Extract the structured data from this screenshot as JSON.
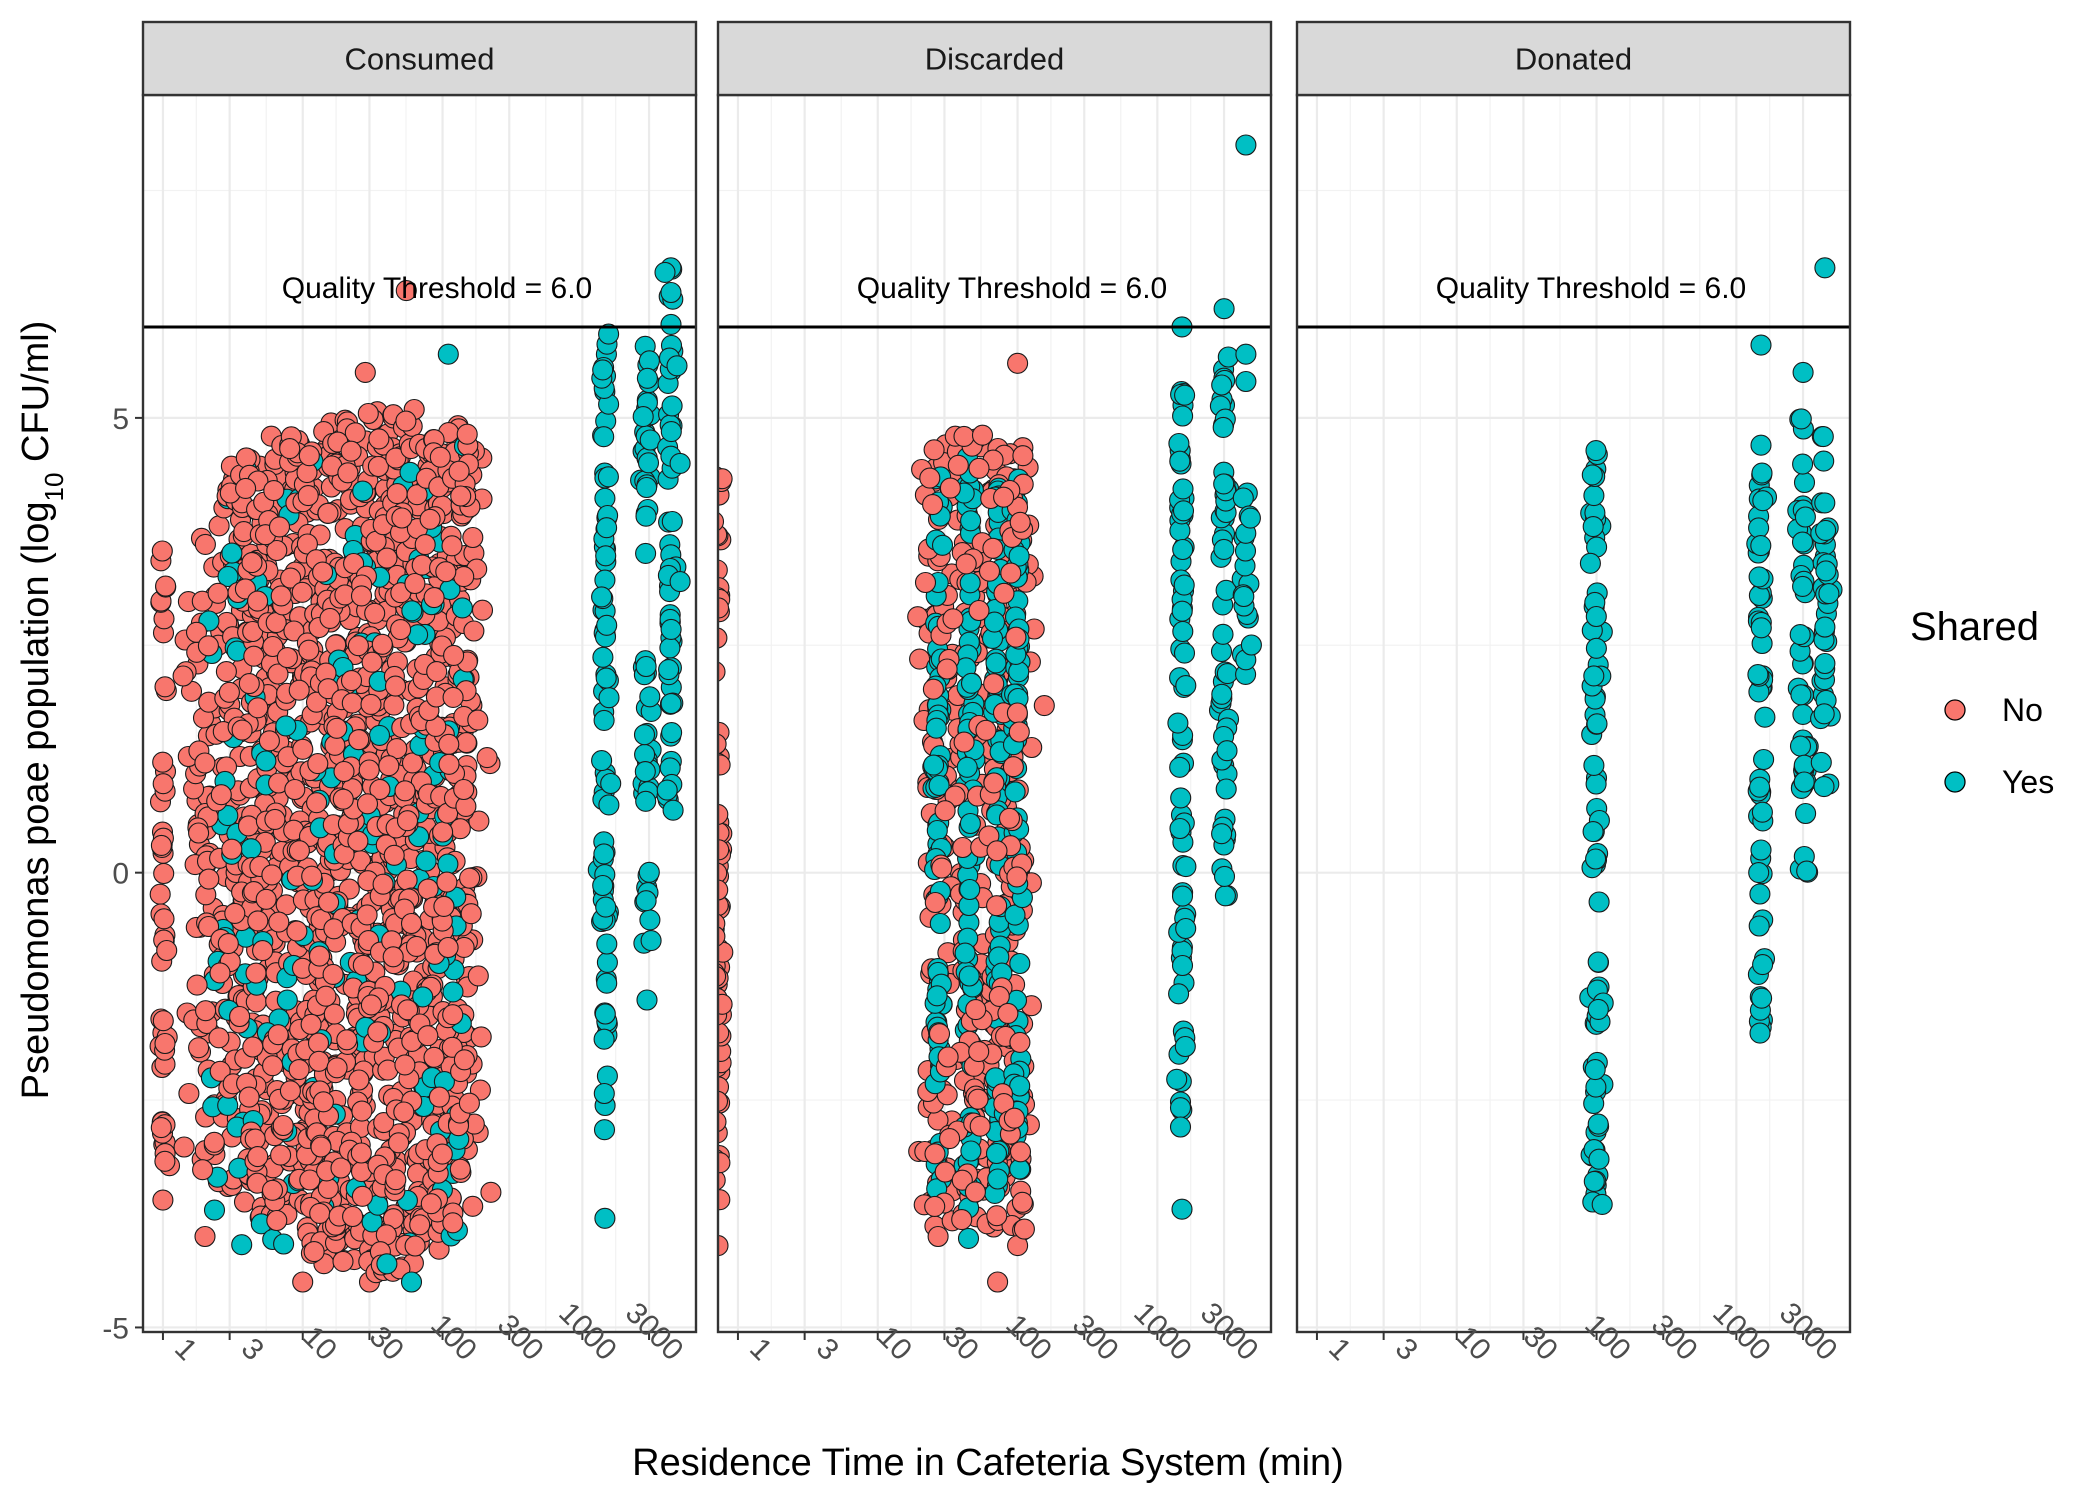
{
  "chart_data": {
    "type": "scatter",
    "facets": [
      "Consumed",
      "Discarded",
      "Donated"
    ],
    "xlabel": "Residence Time in Cafeteria System (min)",
    "ylabel_parts": [
      "Pseudomonas poae population (log",
      "10",
      " CFU/ml)"
    ],
    "x_scale": "log10",
    "xlim": [
      0.72,
      6500
    ],
    "x_ticks": [
      1,
      3,
      10,
      30,
      100,
      300,
      1000,
      3000
    ],
    "x_tick_labels": [
      "1",
      "3",
      "10",
      "30",
      "100",
      "300",
      "1000",
      "3000"
    ],
    "ylim": [
      -5.05,
      8.55
    ],
    "y_ticks": [
      -5,
      0,
      5
    ],
    "y_tick_labels": [
      "-5",
      "0",
      "5"
    ],
    "threshold": {
      "value": 6.0,
      "label": "Quality Threshold = 6.0"
    },
    "legend": {
      "title": "Shared",
      "position": "right",
      "entries": [
        {
          "key": "No",
          "label": "No",
          "color": "#F8766D"
        },
        {
          "key": "Yes",
          "label": "Yes",
          "color": "#00BFC4"
        }
      ]
    },
    "grid": true,
    "series_approx": {
      "Consumed": {
        "No_columns": [
          [
            1,
            -3.3,
            3.7
          ],
          [
            2,
            -3.3,
            3.9
          ],
          [
            3,
            -3.6,
            4.4
          ],
          [
            4,
            -3.7,
            4.6
          ],
          [
            5,
            -3.8,
            4.7
          ],
          [
            6,
            -3.9,
            4.8
          ],
          [
            8,
            -4.0,
            4.9
          ],
          [
            10,
            -4.2,
            4.9
          ],
          [
            13,
            -4.2,
            5.0
          ],
          [
            16,
            -4.3,
            5.0
          ],
          [
            20,
            -4.3,
            5.0
          ],
          [
            25,
            -4.3,
            5.1
          ],
          [
            32,
            -4.4,
            5.1
          ],
          [
            40,
            -4.4,
            5.1
          ],
          [
            50,
            -4.4,
            5.1
          ],
          [
            63,
            -4.3,
            5.1
          ],
          [
            80,
            -4.2,
            5.1
          ],
          [
            100,
            -4.0,
            5.0
          ],
          [
            125,
            -3.8,
            5.0
          ],
          [
            145,
            -3.7,
            4.9
          ]
        ],
        "Yes_columns": [
          [
            1450,
            -2.9,
            6.1
          ],
          [
            2900,
            -0.9,
            5.8
          ],
          [
            4300,
            0.6,
            6.7
          ]
        ],
        "No_extremes": [
          [
            1,
            -3.6
          ],
          [
            2,
            -4.0
          ],
          [
            10,
            -4.5
          ],
          [
            30,
            -4.5
          ],
          [
            55,
            6.4
          ],
          [
            28,
            5.5
          ]
        ],
        "Yes_extremes": [
          [
            1450,
            -3.8
          ],
          [
            2900,
            -1.4
          ],
          [
            4300,
            6.65
          ],
          [
            3900,
            6.6
          ],
          [
            110,
            5.7
          ],
          [
            5000,
            4.5
          ],
          [
            5000,
            3.2
          ],
          [
            40,
            -4.3
          ],
          [
            60,
            -4.5
          ]
        ]
      },
      "Discarded": {
        "No_columns": [
          [
            0.72,
            -3.7,
            4.4
          ],
          [
            27,
            -3.9,
            4.8
          ],
          [
            45,
            -3.9,
            5.0
          ],
          [
            72,
            -4.0,
            4.6
          ],
          [
            100,
            -4.0,
            4.7
          ]
        ],
        "Yes_columns": [
          [
            27,
            -3.8,
            4.4
          ],
          [
            45,
            -4.1,
            4.6
          ],
          [
            72,
            -3.8,
            4.3
          ],
          [
            100,
            -3.5,
            4.4
          ],
          [
            1500,
            -2.8,
            5.3
          ],
          [
            3000,
            -0.4,
            5.8
          ],
          [
            4300,
            2.1,
            4.2
          ]
        ],
        "No_extremes": [
          [
            0.72,
            -4.1
          ],
          [
            27,
            -4.0
          ],
          [
            72,
            -4.5
          ],
          [
            100,
            -4.1
          ],
          [
            100,
            5.6
          ]
        ],
        "Yes_extremes": [
          [
            1500,
            -3.7
          ],
          [
            1500,
            6.0
          ],
          [
            3000,
            6.2
          ],
          [
            4300,
            8.0
          ],
          [
            4300,
            5.7
          ],
          [
            4300,
            5.4
          ]
        ]
      },
      "Donated": {
        "No_columns": [],
        "Yes_columns": [
          [
            100,
            -3.8,
            4.7
          ],
          [
            1500,
            -1.8,
            4.4
          ],
          [
            3000,
            0.0,
            5.3
          ],
          [
            4300,
            0.8,
            4.8
          ]
        ],
        "Yes_extremes": [
          [
            1500,
            5.8
          ],
          [
            1500,
            4.7
          ],
          [
            3000,
            5.5
          ],
          [
            4300,
            6.65
          ],
          [
            4300,
            2.7
          ],
          [
            4300,
            2.3
          ]
        ]
      }
    }
  }
}
